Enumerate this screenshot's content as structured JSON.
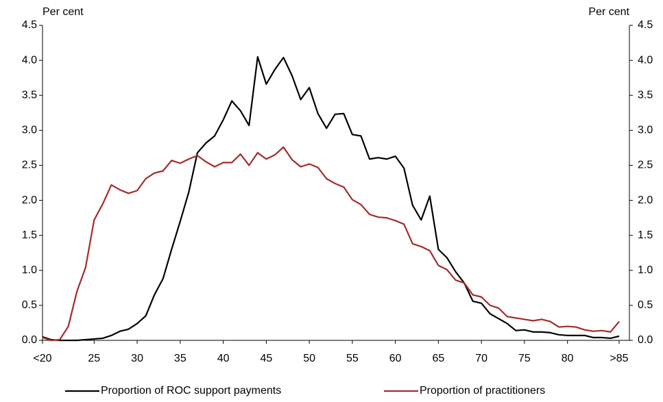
{
  "chart_data": {
    "type": "line",
    "y_label_left": "Per cent",
    "y_label_right": "Per cent",
    "categories": [
      "<20",
      null,
      null,
      null,
      null,
      null,
      "25",
      null,
      null,
      null,
      null,
      "30",
      null,
      null,
      null,
      null,
      "35",
      null,
      null,
      null,
      null,
      "40",
      null,
      null,
      null,
      null,
      "45",
      null,
      null,
      null,
      null,
      "50",
      null,
      null,
      null,
      null,
      "55",
      null,
      null,
      null,
      null,
      "60",
      null,
      null,
      null,
      null,
      "65",
      null,
      null,
      null,
      null,
      "70",
      null,
      null,
      null,
      null,
      "75",
      null,
      null,
      null,
      null,
      "80",
      null,
      null,
      null,
      null,
      null,
      ">85"
    ],
    "series": [
      {
        "name": "Proportion of ROC support payments",
        "color": "#000000",
        "values": [
          0.05,
          0.01,
          0,
          0,
          0,
          0.01,
          0.02,
          0.03,
          0.07,
          0.13,
          0.16,
          0.24,
          0.35,
          0.65,
          0.88,
          1.3,
          1.7,
          2.12,
          2.68,
          2.82,
          2.92,
          3.15,
          3.42,
          3.28,
          3.07,
          4.05,
          3.66,
          3.87,
          4.04,
          3.78,
          3.44,
          3.61,
          3.24,
          3.03,
          3.23,
          3.24,
          2.94,
          2.92,
          2.59,
          2.61,
          2.59,
          2.63,
          2.46,
          1.93,
          1.72,
          2.06,
          1.3,
          1.18,
          0.98,
          0.82,
          0.56,
          0.53,
          0.38,
          0.31,
          0.24,
          0.14,
          0.15,
          0.12,
          0.12,
          0.11,
          0.08,
          0.07,
          0.07,
          0.07,
          0.04,
          0.04,
          0.03,
          0.06
        ]
      },
      {
        "name": "Proportion of practitioners",
        "color": "#a52a2a",
        "values": [
          0.04,
          0,
          0.01,
          0.2,
          0.7,
          1.04,
          1.72,
          1.95,
          2.22,
          2.15,
          2.1,
          2.14,
          2.31,
          2.39,
          2.42,
          2.57,
          2.53,
          2.59,
          2.64,
          2.55,
          2.48,
          2.54,
          2.54,
          2.66,
          2.5,
          2.68,
          2.59,
          2.65,
          2.76,
          2.58,
          2.48,
          2.52,
          2.47,
          2.31,
          2.24,
          2.19,
          2.01,
          1.94,
          1.8,
          1.76,
          1.75,
          1.71,
          1.66,
          1.38,
          1.34,
          1.28,
          1.07,
          1.01,
          0.86,
          0.82,
          0.65,
          0.62,
          0.5,
          0.46,
          0.34,
          0.32,
          0.3,
          0.28,
          0.3,
          0.27,
          0.19,
          0.2,
          0.19,
          0.15,
          0.13,
          0.14,
          0.12,
          0.27
        ]
      }
    ],
    "ylim": [
      0,
      4.5
    ],
    "yticks": [
      {
        "value": 0,
        "label": "0.0"
      },
      {
        "value": 0.5,
        "label": "0.5"
      },
      {
        "value": 1,
        "label": "1.0"
      },
      {
        "value": 1.5,
        "label": "1.5"
      },
      {
        "value": 2,
        "label": "2.0"
      },
      {
        "value": 2.5,
        "label": "2.5"
      },
      {
        "value": 3,
        "label": "3.0"
      },
      {
        "value": 3.5,
        "label": "3.5"
      },
      {
        "value": 4,
        "label": "4.0"
      },
      {
        "value": 4.5,
        "label": "4.5"
      }
    ],
    "y2lim": [
      0,
      4.5
    ],
    "y2ticks": [
      {
        "value": 0,
        "label": "0.0"
      },
      {
        "value": 0.5,
        "label": "0.5"
      },
      {
        "value": 1,
        "label": "1.0"
      },
      {
        "value": 1.5,
        "label": "1.5"
      },
      {
        "value": 2,
        "label": "2.0"
      },
      {
        "value": 2.5,
        "label": "2.5"
      },
      {
        "value": 3,
        "label": "3.0"
      },
      {
        "value": 3.5,
        "label": "3.5"
      },
      {
        "value": 4,
        "label": "4.0"
      },
      {
        "value": 4.5,
        "label": "4.5"
      }
    ],
    "grid": false,
    "legend": "bottom"
  }
}
